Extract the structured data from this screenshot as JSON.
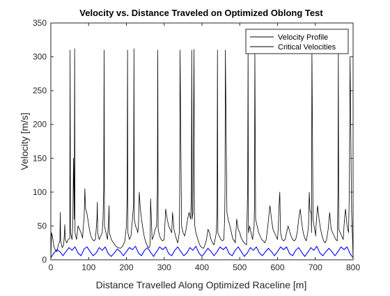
{
  "chart_data": {
    "type": "line",
    "title": "Velocity vs. Distance Traveled on Optimized Oblong Test",
    "xlabel": "Distance Travelled Along Optimized Raceline [m]",
    "ylabel": "Velocity [m/s]",
    "xlim": [
      0,
      800
    ],
    "ylim": [
      0,
      350
    ],
    "xticks": [
      0,
      100,
      200,
      300,
      400,
      500,
      600,
      700,
      800
    ],
    "yticks": [
      0,
      50,
      100,
      150,
      200,
      250,
      300,
      350
    ],
    "grid": false,
    "legend_position": "top-right",
    "colors": {
      "velocity_profile": "#000000",
      "critical_velocities": "#0000ff"
    },
    "legend": [
      "Velocity Profile",
      "Critical Velocities"
    ],
    "series": [
      {
        "name": "Velocity Profile",
        "color": "#000000",
        "x": [
          0,
          2,
          5,
          8,
          12,
          16,
          20,
          24,
          25,
          26,
          30,
          34,
          36,
          37,
          38,
          42,
          46,
          50,
          51,
          52,
          56,
          58,
          60,
          62,
          63,
          64,
          68,
          72,
          76,
          80,
          84,
          86,
          88,
          90,
          92,
          95,
          98,
          102,
          106,
          110,
          114,
          118,
          122,
          123,
          124,
          128,
          132,
          136,
          138,
          140,
          141,
          142,
          146,
          150,
          153,
          154,
          155,
          160,
          166,
          172,
          178,
          184,
          190,
          196,
          200,
          202,
          203,
          204,
          208,
          212,
          216,
          219,
          220,
          221,
          224,
          228,
          230,
          232,
          234,
          237,
          240,
          244,
          248,
          252,
          256,
          260,
          262,
          263,
          264,
          268,
          272,
          276,
          280,
          282,
          283,
          284,
          288,
          292,
          296,
          300,
          304,
          308,
          312,
          316,
          320,
          322,
          326,
          330,
          334,
          336,
          340,
          341,
          342,
          346,
          350,
          354,
          358,
          362,
          366,
          370,
          372,
          373,
          374,
          376,
          379,
          380,
          381,
          384,
          388,
          392,
          396,
          400,
          404,
          408,
          412,
          416,
          420,
          424,
          428,
          432,
          438,
          440,
          441,
          442,
          446,
          450,
          454,
          458,
          460,
          461,
          462,
          466,
          470,
          474,
          478,
          482,
          486,
          488,
          492,
          496,
          500,
          504,
          508,
          512,
          518,
          521,
          522,
          523,
          526,
          530,
          534,
          538,
          539,
          540,
          542,
          546,
          550,
          554,
          558,
          562,
          566,
          570,
          574,
          578,
          580,
          584,
          588,
          592,
          596,
          600,
          602,
          604,
          606,
          608,
          612,
          616,
          620,
          624,
          628,
          632,
          636,
          640,
          644,
          648,
          652,
          656,
          660,
          664,
          668,
          672,
          676,
          680,
          682,
          684,
          686,
          689,
          690,
          691,
          694,
          698,
          700,
          701,
          702,
          706,
          710,
          714,
          718,
          722,
          726,
          730,
          734,
          738,
          742,
          746,
          750,
          754,
          758,
          760,
          761,
          762,
          766,
          770,
          774,
          776,
          778,
          780,
          784,
          788,
          790,
          792,
          796,
          798,
          800
        ],
        "y": [
          0,
          40,
          32,
          20,
          14,
          12,
          22,
          28,
          70,
          28,
          18,
          22,
          40,
          52,
          30,
          25,
          30,
          32,
          310,
          40,
          30,
          50,
          150,
          60,
          312,
          40,
          30,
          50,
          45,
          40,
          32,
          50,
          60,
          105,
          75,
          70,
          60,
          45,
          35,
          30,
          28,
          30,
          60,
          85,
          40,
          30,
          35,
          40,
          60,
          105,
          310,
          50,
          40,
          30,
          60,
          80,
          40,
          30,
          25,
          20,
          18,
          17,
          20,
          28,
          50,
          100,
          310,
          40,
          30,
          35,
          60,
          82,
          312,
          60,
          50,
          45,
          40,
          50,
          100,
          75,
          60,
          45,
          32,
          25,
          20,
          18,
          20,
          28,
          90,
          30,
          35,
          45,
          50,
          101,
          310,
          45,
          35,
          30,
          28,
          30,
          75,
          60,
          50,
          45,
          40,
          70,
          45,
          35,
          28,
          25,
          40,
          100,
          310,
          50,
          40,
          35,
          45,
          60,
          70,
          60,
          100,
          310,
          60,
          70,
          311,
          70,
          50,
          40,
          32,
          25,
          20,
          18,
          17,
          22,
          30,
          45,
          40,
          30,
          25,
          22,
          40,
          75,
          310,
          40,
          35,
          30,
          28,
          30,
          60,
          105,
          310,
          70,
          58,
          50,
          40,
          30,
          28,
          25,
          60,
          45,
          40,
          32,
          28,
          25,
          22,
          110,
          312,
          40,
          50,
          40,
          30,
          50,
          80,
          310,
          60,
          50,
          40,
          35,
          30,
          28,
          25,
          30,
          48,
          70,
          80,
          60,
          45,
          40,
          35,
          30,
          48,
          80,
          100,
          40,
          30,
          28,
          30,
          40,
          50,
          42,
          35,
          30,
          28,
          30,
          40,
          60,
          75,
          55,
          40,
          32,
          28,
          40,
          50,
          100,
          72,
          70,
          40,
          312,
          60,
          45,
          40,
          35,
          50,
          80,
          60,
          45,
          35,
          28,
          25,
          30,
          45,
          70,
          45,
          40,
          35,
          30,
          28,
          100,
          312,
          45,
          40,
          35,
          30,
          50,
          65,
          75,
          50,
          40,
          100,
          300,
          70,
          40,
          0
        ]
      },
      {
        "name": "Critical Velocities",
        "color": "#0000ff",
        "x": [
          0,
          8,
          16,
          24,
          32,
          40,
          48,
          56,
          64,
          72,
          80,
          88,
          96,
          104,
          112,
          120,
          128,
          136,
          144,
          152,
          160,
          168,
          176,
          184,
          192,
          200,
          208,
          216,
          224,
          232,
          240,
          248,
          256,
          264,
          272,
          280,
          288,
          296,
          304,
          312,
          320,
          328,
          336,
          344,
          352,
          360,
          368,
          376,
          384,
          392,
          400,
          408,
          416,
          424,
          432,
          440,
          448,
          456,
          464,
          472,
          480,
          488,
          496,
          504,
          512,
          520,
          528,
          536,
          544,
          552,
          560,
          568,
          576,
          584,
          592,
          600,
          608,
          616,
          624,
          632,
          640,
          648,
          656,
          664,
          672,
          680,
          688,
          696,
          704,
          712,
          720,
          728,
          736,
          744,
          752,
          760,
          768,
          776,
          784,
          792,
          800
        ],
        "y": [
          3,
          10,
          15,
          12,
          6,
          12,
          18,
          14,
          19,
          10,
          6,
          16,
          19,
          12,
          6,
          10,
          18,
          14,
          19,
          9,
          5,
          10,
          16,
          12,
          6,
          12,
          18,
          15,
          20,
          10,
          6,
          14,
          18,
          11,
          5,
          12,
          19,
          15,
          19,
          9,
          6,
          14,
          19,
          12,
          6,
          10,
          18,
          14,
          20,
          10,
          5,
          11,
          17,
          12,
          6,
          12,
          19,
          15,
          19,
          9,
          6,
          14,
          19,
          12,
          5,
          10,
          18,
          14,
          19,
          10,
          6,
          12,
          17,
          12,
          6,
          12,
          19,
          15,
          19,
          9,
          6,
          14,
          18,
          11,
          5,
          11,
          18,
          14,
          20,
          10,
          6,
          12,
          17,
          12,
          6,
          12,
          19,
          15,
          19,
          9,
          3
        ]
      }
    ]
  }
}
